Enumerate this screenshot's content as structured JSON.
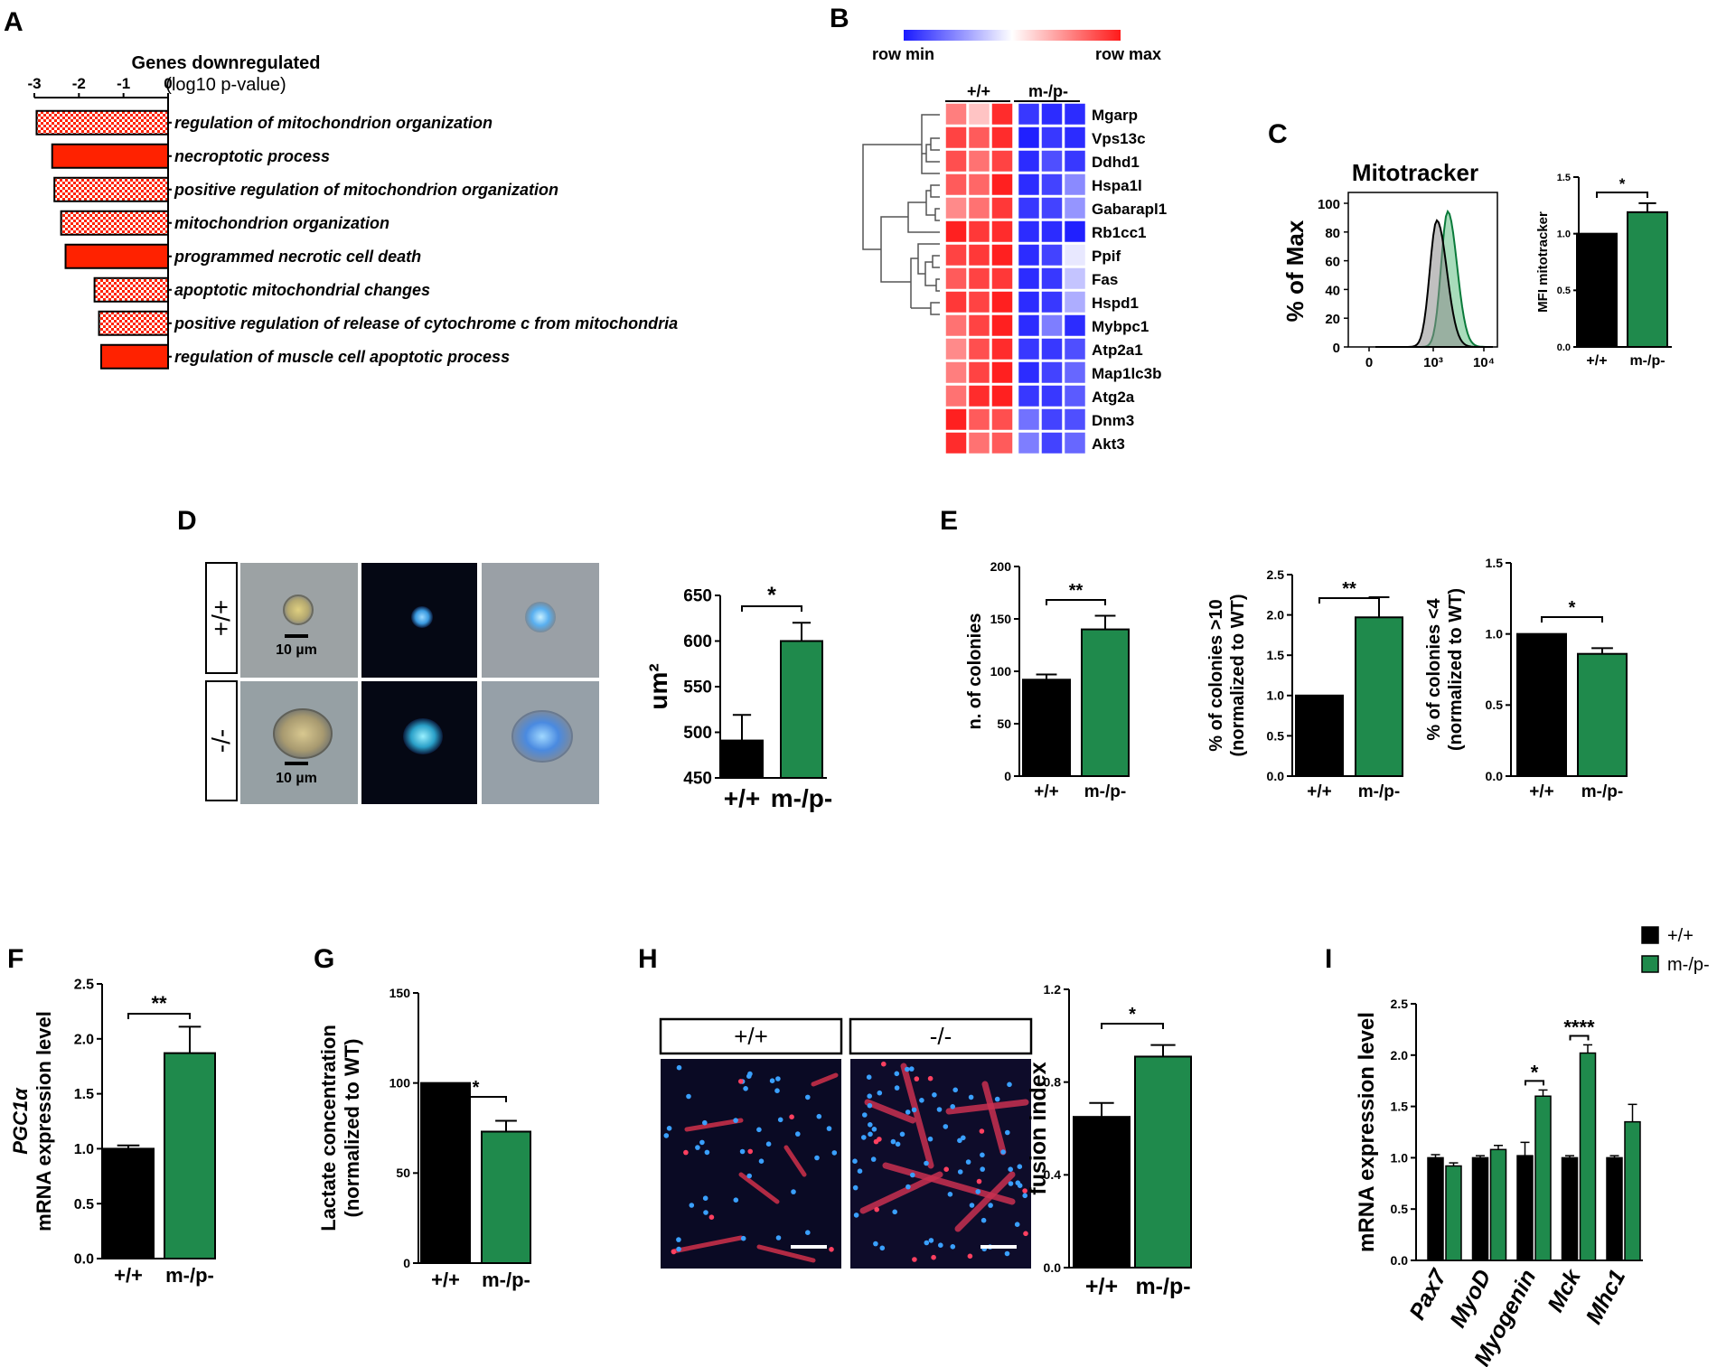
{
  "panel_letters": [
    "A",
    "B",
    "C",
    "D",
    "E",
    "F",
    "G",
    "H",
    "I"
  ],
  "colors": {
    "wt": "#000000",
    "ko": "#1f8a4c",
    "red": "#ff2200",
    "heat_low": "#1a1aff",
    "heat_high": "#ff1a1a"
  },
  "chart_data": [
    {
      "panel": "A",
      "type": "bar",
      "orientation": "horizontal",
      "title": "Genes downregulated",
      "subtitle": "(log10 p-value)",
      "xlim": [
        -3,
        0
      ],
      "ticks": [
        "-3",
        "-2",
        "-1",
        "0"
      ],
      "categories": [
        "regulation of mitochondrion organization",
        "necroptotic process",
        "positive regulation of mitochondrion organization",
        "mitochondrion organization",
        "programmed necrotic cell death",
        "apoptotic mitochondrial changes",
        "positive regulation of release of cytochrome c from mitochondria",
        "regulation of muscle cell apoptotic process"
      ],
      "values": [
        -2.95,
        -2.6,
        -2.55,
        -2.4,
        -2.3,
        -1.65,
        -1.55,
        -1.5
      ],
      "patterns": [
        "checker",
        "solid",
        "checker",
        "checker",
        "solid",
        "checker",
        "checker",
        "solid"
      ]
    },
    {
      "panel": "B",
      "type": "heatmap",
      "legend": {
        "min": "row min",
        "max": "row max"
      },
      "column_groups": [
        "+/+",
        "m-/p-"
      ],
      "rows": [
        "Mgarp",
        "Vps13c",
        "Ddhd1",
        "Hspa1l",
        "Gabarapl1",
        "Rb1cc1",
        "Ppif",
        "Fas",
        "Hspd1",
        "Mybpc1",
        "Atp2a1",
        "Map1lc3b",
        "Atg2a",
        "Dnm3",
        "Akt3"
      ],
      "values": [
        [
          0.55,
          0.25,
          0.9,
          -0.85,
          -0.9,
          -0.9
        ],
        [
          0.8,
          0.7,
          0.9,
          -0.95,
          -0.85,
          -0.9
        ],
        [
          0.75,
          0.6,
          0.8,
          -0.9,
          -0.75,
          -0.85
        ],
        [
          0.7,
          0.65,
          0.95,
          -0.9,
          -0.8,
          -0.5
        ],
        [
          0.5,
          0.6,
          0.85,
          -0.85,
          -0.8,
          -0.45
        ],
        [
          0.95,
          0.85,
          0.9,
          -0.9,
          -0.9,
          -0.95
        ],
        [
          0.8,
          0.85,
          0.95,
          -0.9,
          -0.8,
          -0.1
        ],
        [
          0.7,
          0.8,
          0.85,
          -0.9,
          -0.85,
          -0.25
        ],
        [
          0.85,
          0.8,
          0.95,
          -0.9,
          -0.85,
          -0.35
        ],
        [
          0.6,
          0.8,
          0.95,
          -0.9,
          -0.55,
          -0.9
        ],
        [
          0.5,
          0.75,
          0.9,
          -0.85,
          -0.85,
          -0.75
        ],
        [
          0.55,
          0.8,
          0.95,
          -0.9,
          -0.8,
          -0.65
        ],
        [
          0.6,
          0.9,
          0.95,
          -0.85,
          -0.85,
          -0.7
        ],
        [
          0.95,
          0.7,
          0.75,
          -0.6,
          -0.8,
          -0.75
        ],
        [
          0.9,
          0.6,
          0.7,
          -0.55,
          -0.8,
          -0.65
        ]
      ]
    },
    {
      "panel": "C1",
      "type": "area",
      "title": "Mitotracker",
      "ylabel": "% of Max",
      "yticks": [
        "0",
        "20",
        "40",
        "60",
        "80",
        "100"
      ],
      "xticks": [
        "0",
        "10³",
        "10⁴"
      ],
      "series": [
        {
          "name": "+/+",
          "peak_log": 3.0
        },
        {
          "name": "m-/p-",
          "peak_log": 3.15
        }
      ]
    },
    {
      "panel": "C2",
      "type": "bar",
      "ylabel": "MFI mitotracker",
      "categories": [
        "+/+",
        "m-/p-"
      ],
      "values": [
        1.0,
        1.19
      ],
      "errors": [
        0,
        0.08
      ],
      "ylim": [
        0,
        1.5
      ],
      "yticks": [
        "0.0",
        "0.5",
        "1.0",
        "1.5"
      ],
      "significance": "*"
    },
    {
      "panel": "D",
      "type": "bar",
      "ylabel": "um²",
      "categories": [
        "+/+",
        "m-/p-"
      ],
      "values": [
        491,
        600
      ],
      "errors": [
        28,
        20
      ],
      "ylim": [
        450,
        650
      ],
      "yticks": [
        "450",
        "500",
        "550",
        "600",
        "650"
      ],
      "significance": "*"
    },
    {
      "panel": "E1",
      "type": "bar",
      "ylabel": "n. of colonies",
      "categories": [
        "+/+",
        "m-/p-"
      ],
      "values": [
        92,
        140
      ],
      "errors": [
        5,
        13
      ],
      "ylim": [
        0,
        200
      ],
      "yticks": [
        "0",
        "50",
        "100",
        "150",
        "200"
      ],
      "significance": "**"
    },
    {
      "panel": "E2",
      "type": "bar",
      "ylabel": "% of colonies >10",
      "ylabel2": "(normalized to WT)",
      "categories": [
        "+/+",
        "m-/p-"
      ],
      "values": [
        1.0,
        1.97
      ],
      "errors": [
        0,
        0.25
      ],
      "ylim": [
        0,
        2.5
      ],
      "yticks": [
        "0.0",
        "0.5",
        "1.0",
        "1.5",
        "2.0",
        "2.5"
      ],
      "significance": "**"
    },
    {
      "panel": "E3",
      "type": "bar",
      "ylabel": "% of colonies <4",
      "ylabel2": "(normalized to WT)",
      "categories": [
        "+/+",
        "m-/p-"
      ],
      "values": [
        1.0,
        0.86
      ],
      "errors": [
        0,
        0.04
      ],
      "ylim": [
        0,
        1.5
      ],
      "yticks": [
        "0.0",
        "0.5",
        "1.0",
        "1.5"
      ],
      "significance": "*"
    },
    {
      "panel": "F",
      "type": "bar",
      "ylabel": "mRNA expression level",
      "ylabel_italic": "PGC1α",
      "categories": [
        "+/+",
        "m-/p-"
      ],
      "values": [
        1.0,
        1.87
      ],
      "errors": [
        0.03,
        0.24
      ],
      "ylim": [
        0,
        2.5
      ],
      "yticks": [
        "0.0",
        "0.5",
        "1.0",
        "1.5",
        "2.0",
        "2.5"
      ],
      "significance": "**"
    },
    {
      "panel": "G",
      "type": "bar",
      "ylabel": "Lactate concentration",
      "ylabel2": "(normalized to WT)",
      "categories": [
        "+/+",
        "m-/p-"
      ],
      "values": [
        100,
        73
      ],
      "errors": [
        0,
        6
      ],
      "ylim": [
        0,
        150
      ],
      "yticks": [
        "0",
        "50",
        "100",
        "150"
      ],
      "significance": "*"
    },
    {
      "panel": "H",
      "type": "bar",
      "ylabel": "fusion index",
      "categories": [
        "+/+",
        "m-/p-"
      ],
      "values": [
        0.65,
        0.91
      ],
      "errors": [
        0.06,
        0.05
      ],
      "ylim": [
        0,
        1.2
      ],
      "yticks": [
        "0.0",
        "0.4",
        "0.8",
        "1.2"
      ],
      "significance": "*"
    },
    {
      "panel": "I",
      "type": "bar",
      "ylabel": "mRNA expression level",
      "categories": [
        "Pax7",
        "MyoD",
        "Myogenin",
        "Mck",
        "Mhc1"
      ],
      "series": [
        {
          "name": "+/+",
          "values": [
            1.0,
            1.0,
            1.02,
            1.0,
            1.0
          ],
          "errors": [
            0.03,
            0.02,
            0.13,
            0.02,
            0.02
          ]
        },
        {
          "name": "m-/p-",
          "values": [
            0.92,
            1.08,
            1.6,
            2.02,
            1.35
          ],
          "errors": [
            0.03,
            0.04,
            0.06,
            0.08,
            0.17
          ]
        }
      ],
      "ylim": [
        0,
        2.5
      ],
      "yticks": [
        "0.0",
        "0.5",
        "1.0",
        "1.5",
        "2.0",
        "2.5"
      ],
      "significance": [
        {
          "category": "Myogenin",
          "label": "*"
        },
        {
          "category": "Mck",
          "label": "****"
        }
      ]
    }
  ],
  "images": {
    "D": {
      "row_labels": [
        "+/+",
        "-/-"
      ],
      "scale_bar": "10 µm"
    },
    "H": {
      "labels": [
        "+/+",
        "-/-"
      ]
    }
  }
}
